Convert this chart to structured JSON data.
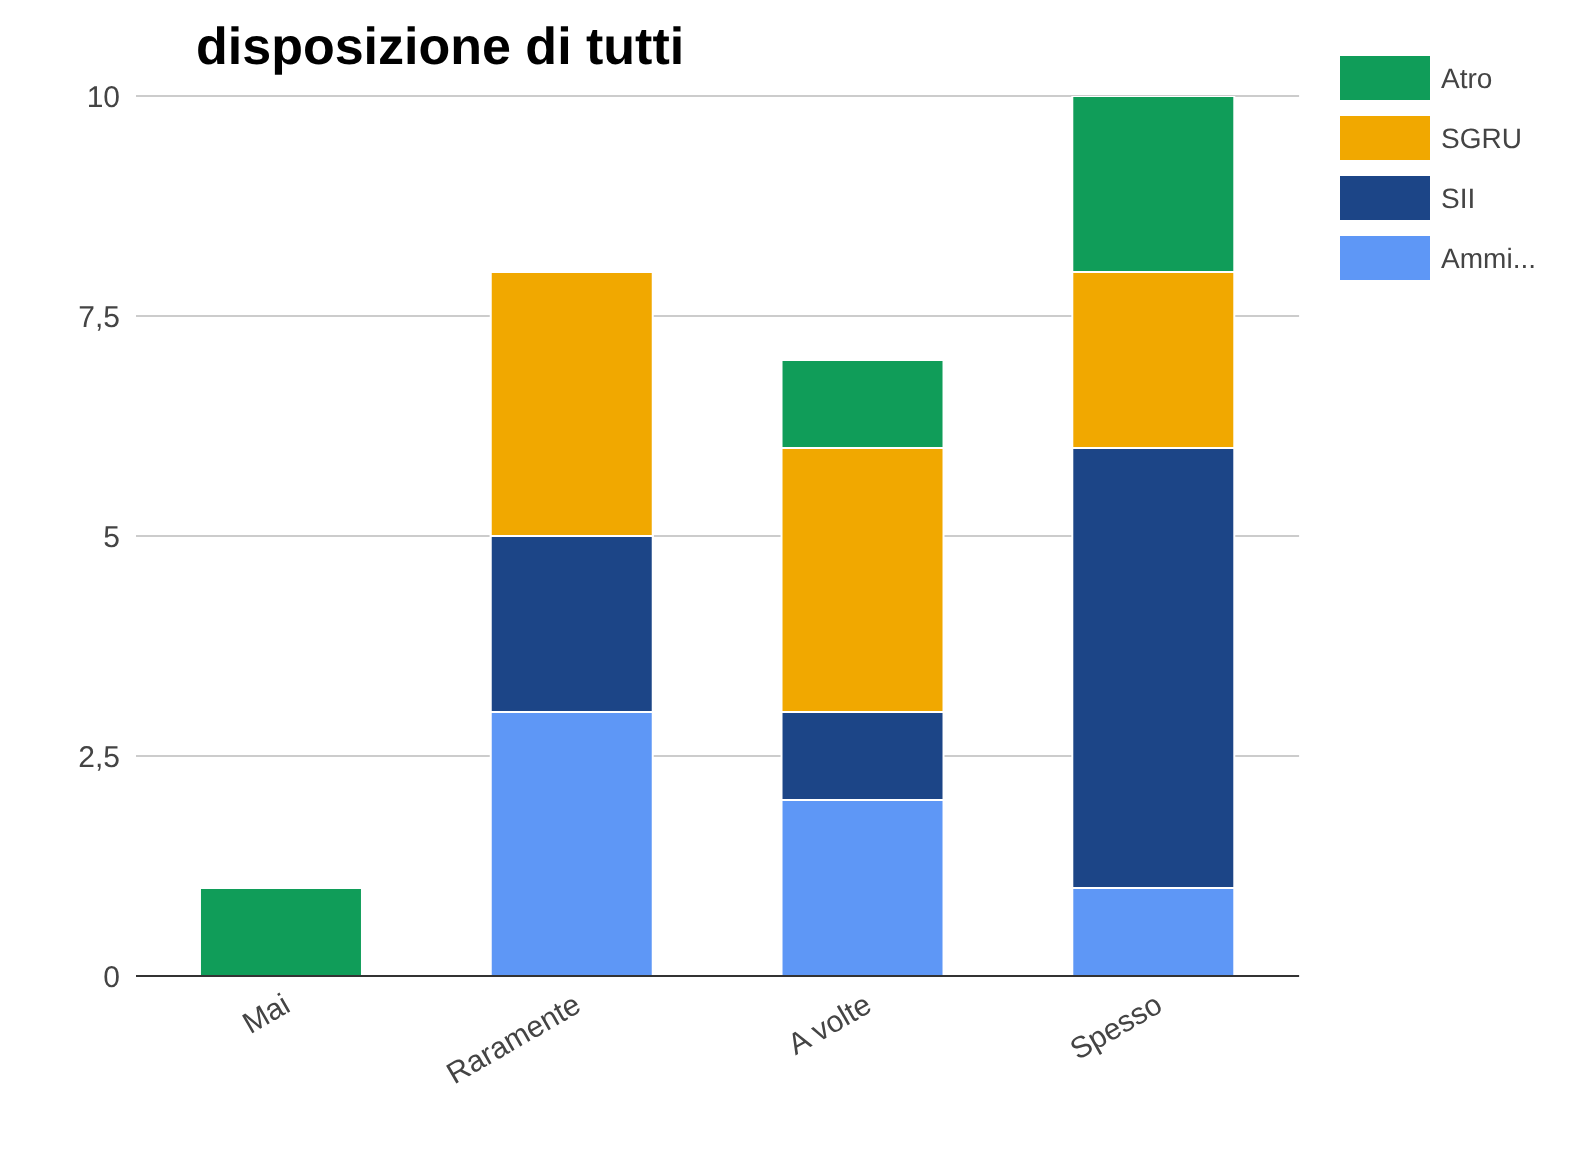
{
  "chart_data": {
    "type": "bar",
    "title": "disposizione di tutti",
    "stacked": true,
    "categories": [
      "Mai",
      "Raramente",
      "A volte",
      "Spesso"
    ],
    "series": [
      {
        "name": "Ammi...",
        "color": "#5e97f6",
        "values": [
          0,
          3,
          2,
          1
        ]
      },
      {
        "name": "SII",
        "color": "#1c4587",
        "values": [
          0,
          2,
          1,
          5
        ]
      },
      {
        "name": "SGRU",
        "color": "#f1a800",
        "values": [
          0,
          3,
          3,
          2
        ]
      },
      {
        "name": "Atro",
        "color": "#109d59",
        "values": [
          1,
          0,
          1,
          2
        ]
      }
    ],
    "ylim": [
      0,
      10
    ],
    "yticks": [
      0,
      {
        "value": 2.5,
        "label": "2,5"
      },
      5,
      {
        "value": 7.5,
        "label": "7,5"
      },
      10
    ],
    "grid": "y",
    "legend": "top right"
  }
}
